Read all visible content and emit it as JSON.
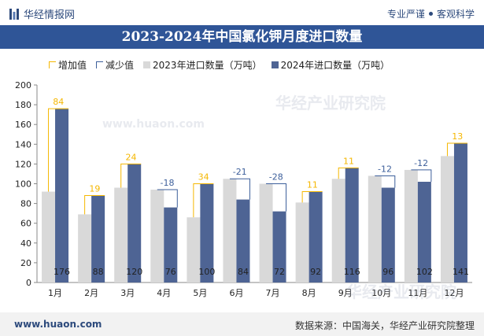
{
  "header": {
    "brand": "华经情报网",
    "tagline_left": "专业严谨",
    "tagline_right": "客观科学"
  },
  "title": "2023-2024年中国氯化钾月度进口数量",
  "legend": {
    "increase": "增加值",
    "decrease": "减少值",
    "y2023": "2023年进口数量（万吨）",
    "y2024": "2024年进口数量（万吨）"
  },
  "colors": {
    "increase": "#f5b700",
    "decrease": "#3d5f9b",
    "y2023": "#d9d9d9",
    "y2024": "#4e6494"
  },
  "chart_data": {
    "type": "bar",
    "categories": [
      "1月",
      "2月",
      "3月",
      "4月",
      "5月",
      "6月",
      "7月",
      "8月",
      "9月",
      "10月",
      "11月",
      "12月"
    ],
    "series": [
      {
        "name": "2023年进口数量（万吨）",
        "values": [
          92,
          69,
          96,
          94,
          66,
          105,
          100,
          81,
          105,
          108,
          114,
          128
        ]
      },
      {
        "name": "2024年进口数量（万吨）",
        "values": [
          176,
          88,
          120,
          76,
          100,
          84,
          72,
          92,
          116,
          96,
          102,
          141
        ]
      }
    ],
    "changes": [
      84,
      19,
      24,
      -18,
      34,
      -21,
      -28,
      11,
      11,
      -12,
      -12,
      13
    ],
    "ylim": [
      0,
      200
    ],
    "yticks": [
      0,
      20,
      40,
      60,
      80,
      100,
      120,
      140,
      160,
      180,
      200
    ],
    "legend_position": "top"
  },
  "watermark": {
    "site": "www.huaon.com",
    "cn": "华经产业研究院"
  },
  "footer": {
    "url": "www.huaon.com",
    "source": "数据来源：中国海关，华经产业研究院整理"
  }
}
